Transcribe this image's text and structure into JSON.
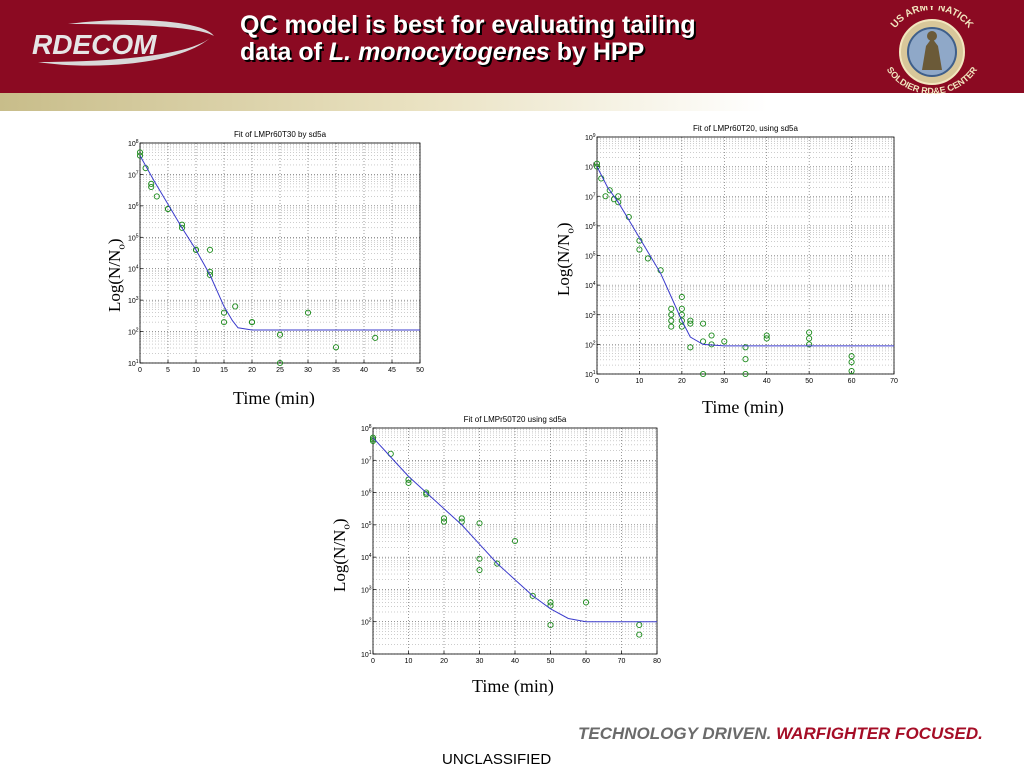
{
  "header": {
    "logo_text": "RDECOM",
    "title_line1": "QC model is best for evaluating tailing",
    "title_line2_prefix": "data of ",
    "title_line2_species": "L. monocytogenes",
    "title_line2_suffix": " by HPP",
    "seal_text_top": "US ARMY NATICK",
    "seal_text_bottom": "SOLDIER RD&E CENTER"
  },
  "axis_labels": {
    "y_main": "Log(N/N",
    "y_sub": "o",
    "y_close": ")",
    "x": "Time (min)"
  },
  "footer": {
    "tagline_a": "TECHNOLOGY DRIVEN.",
    "tagline_b": "WARFIGHTER FOCUSED.",
    "classification": "UNCLASSIFIED"
  },
  "colors": {
    "header_bg": "#8b0a22",
    "points": "#1a8a1a",
    "fit_line": "#3b3bcc"
  },
  "chart_data": [
    {
      "type": "scatter",
      "title": "Fit of LMPr60T30 by sd5a",
      "xlabel": "Time (min)",
      "ylabel": "Log(N/No)",
      "xlim": [
        0,
        50
      ],
      "ylim_log10": [
        1,
        8
      ],
      "y_scale": "log",
      "xticks": [
        0,
        5,
        10,
        15,
        20,
        25,
        30,
        35,
        40,
        45,
        50
      ],
      "yticks_exp": [
        1,
        2,
        3,
        4,
        5,
        6,
        7,
        8
      ],
      "grid": true,
      "series": [
        {
          "kind": "points",
          "x": [
            0,
            0,
            1,
            2,
            2,
            3,
            5,
            5,
            7.5,
            7.5,
            10,
            10,
            12.5,
            12.5,
            12.5,
            15,
            15,
            17,
            20,
            20,
            25,
            25,
            30,
            35,
            42
          ],
          "log10_y": [
            7.7,
            7.6,
            7.2,
            6.7,
            6.6,
            6.3,
            5.9,
            5.9,
            5.4,
            5.3,
            4.6,
            4.6,
            4.6,
            3.9,
            3.8,
            2.6,
            2.3,
            2.8,
            2.3,
            2.3,
            1.9,
            1.0,
            2.6,
            1.5,
            1.8
          ]
        },
        {
          "kind": "fit",
          "x": [
            0,
            2.5,
            5,
            7.5,
            10,
            12.5,
            15,
            16.5,
            17.5,
            20,
            25,
            50
          ],
          "log10_y": [
            7.6,
            6.8,
            6.05,
            5.3,
            4.6,
            3.8,
            2.8,
            2.35,
            2.12,
            2.05,
            2.05,
            2.05
          ]
        }
      ]
    },
    {
      "type": "scatter",
      "title": "Fit of LMPr60T20, using sd5a",
      "xlabel": "Time (min)",
      "ylabel": "Log(N/No)",
      "xlim": [
        0,
        70
      ],
      "ylim_log10": [
        1,
        9
      ],
      "y_scale": "log",
      "xticks": [
        0,
        10,
        20,
        30,
        40,
        50,
        60,
        70
      ],
      "yticks_exp": [
        1,
        2,
        3,
        4,
        5,
        6,
        7,
        8,
        9
      ],
      "grid": true,
      "series": [
        {
          "kind": "points",
          "x": [
            0,
            0,
            1,
            2,
            3,
            4,
            5,
            5,
            7.5,
            10,
            10,
            12,
            15,
            17.5,
            17.5,
            17.5,
            17.5,
            20,
            20,
            20,
            20,
            20,
            22,
            22,
            22,
            25,
            25,
            25,
            27,
            27,
            30,
            35,
            35,
            35,
            40,
            40,
            50,
            50,
            50,
            60,
            60,
            60
          ],
          "log10_y": [
            8.0,
            8.1,
            7.6,
            7.0,
            7.2,
            6.9,
            7.0,
            6.8,
            6.3,
            5.5,
            5.2,
            4.9,
            4.5,
            3.2,
            3.0,
            2.8,
            2.6,
            3.6,
            3.2,
            3.0,
            2.8,
            2.6,
            2.8,
            2.7,
            1.9,
            2.7,
            2.1,
            1.0,
            2.3,
            2.0,
            2.1,
            1.9,
            1.5,
            1.0,
            2.3,
            2.2,
            2.4,
            2.2,
            2.0,
            1.6,
            1.4,
            1.1
          ]
        },
        {
          "kind": "fit",
          "x": [
            0,
            2.5,
            5,
            7.5,
            10,
            12.5,
            15,
            17.5,
            20,
            22,
            25,
            30,
            70
          ],
          "log10_y": [
            8.0,
            7.3,
            6.8,
            6.2,
            5.6,
            5.0,
            4.4,
            3.6,
            2.8,
            2.25,
            2.0,
            1.95,
            1.95
          ]
        }
      ]
    },
    {
      "type": "scatter",
      "title": "Fit of LMPr50T20 using sd5a",
      "xlabel": "Time (min)",
      "ylabel": "Log(N/No)",
      "xlim": [
        0,
        80
      ],
      "ylim_log10": [
        1,
        8
      ],
      "y_scale": "log",
      "xticks": [
        0,
        10,
        20,
        30,
        40,
        50,
        60,
        70,
        80
      ],
      "yticks_exp": [
        1,
        2,
        3,
        4,
        5,
        6,
        7,
        8
      ],
      "grid": true,
      "series": [
        {
          "kind": "points",
          "x": [
            0,
            0,
            0,
            5,
            10,
            10,
            15,
            15,
            20,
            20,
            25,
            25,
            30,
            30,
            30,
            35,
            40,
            45,
            50,
            50,
            50,
            60,
            75,
            75
          ],
          "log10_y": [
            7.7,
            7.6,
            7.65,
            7.2,
            6.4,
            6.3,
            6.0,
            5.95,
            5.2,
            5.1,
            5.2,
            5.1,
            5.05,
            3.95,
            3.6,
            3.8,
            4.5,
            2.8,
            2.6,
            2.5,
            1.9,
            2.6,
            1.9,
            1.6
          ]
        },
        {
          "kind": "fit",
          "x": [
            0,
            5,
            10,
            15,
            20,
            25,
            30,
            35,
            40,
            45,
            50,
            55,
            60,
            65,
            80
          ],
          "log10_y": [
            7.7,
            7.1,
            6.5,
            6.0,
            5.5,
            5.0,
            4.4,
            3.8,
            3.3,
            2.8,
            2.4,
            2.1,
            2.0,
            2.0,
            2.0
          ]
        }
      ]
    }
  ]
}
